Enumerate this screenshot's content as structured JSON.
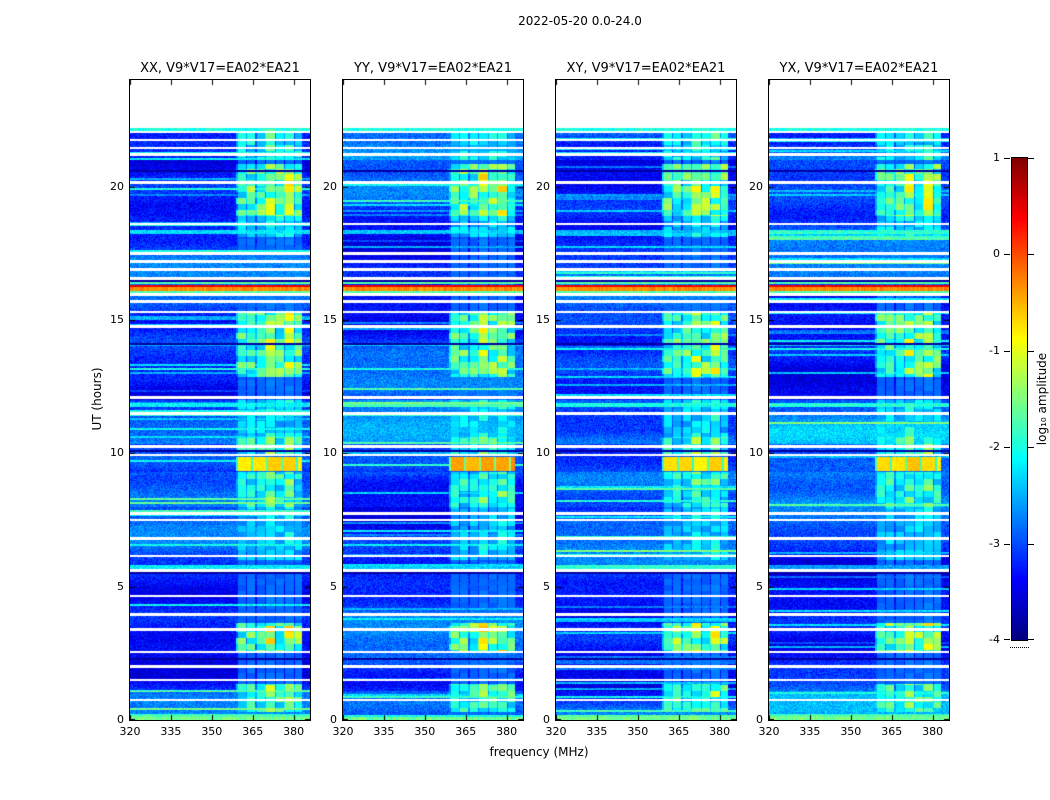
{
  "figure": {
    "suptitle": "2022-05-20 0.0-24.0"
  },
  "chart_data": {
    "type": "heatmap",
    "suptitle": "2022-05-20 0.0-24.0",
    "xlabel": "frequency (MHz)",
    "ylabel": "UT (hours)",
    "x_axis": {
      "unit": "MHz",
      "range": [
        320,
        386
      ],
      "ticks": [
        320,
        335,
        350,
        365,
        380
      ]
    },
    "y_axis": {
      "unit": "hours",
      "range": [
        0,
        24
      ],
      "ticks": [
        0,
        5,
        10,
        15,
        20
      ]
    },
    "colorbar": {
      "label": "log₁₀ amplitude",
      "range_log10": [
        -4,
        1
      ],
      "ticks": [
        1,
        0,
        -1,
        -2,
        -3,
        -4
      ],
      "colormap": "jet"
    },
    "panels": [
      {
        "pol": "XX",
        "title": "XX, V9*V17=EA02*EA21",
        "seed": 101,
        "event_peak": -0.7
      },
      {
        "pol": "YY",
        "title": "YY, V9*V17=EA02*EA21",
        "seed": 202,
        "event_peak": -0.4
      },
      {
        "pol": "XY",
        "title": "XY, V9*V17=EA02*EA21",
        "seed": 303,
        "event_peak": -0.75
      },
      {
        "pol": "YX",
        "title": "YX, V9*V17=EA02*EA21",
        "seed": 404,
        "event_peak": -0.7
      }
    ],
    "features": {
      "background_log10": -3.15,
      "data_coverage_hours": [
        0,
        22.2
      ],
      "enhanced_band_mhz": [
        359,
        383
      ],
      "band_windows": [
        {
          "hours": [
            0.3,
            1.35
          ],
          "amp": 1.3
        },
        {
          "hours": [
            2.55,
            3.65
          ],
          "amp": 1.7
        },
        {
          "hours": [
            6.0,
            8.0
          ],
          "amp": 0.6
        },
        {
          "hours": [
            8.0,
            9.3
          ],
          "amp": 1.1
        },
        {
          "hours": [
            9.9,
            10.6
          ],
          "amp": 1.2
        },
        {
          "hours": [
            10.6,
            12.0
          ],
          "amp": 0.7
        },
        {
          "hours": [
            12.85,
            15.25
          ],
          "amp": 1.5
        },
        {
          "hours": [
            18.1,
            18.9
          ],
          "amp": 0.8
        },
        {
          "hours": [
            18.9,
            20.85
          ],
          "amp": 1.6
        },
        {
          "hours": [
            21.0,
            22.15
          ],
          "amp": 0.9
        }
      ],
      "bright_event_hours": [
        9.35,
        9.88
      ],
      "rfi_line_hours": [
        16.1,
        16.34
      ],
      "white_gap_hours": [
        22.05,
        21.75,
        21.45,
        21.2,
        20.15,
        18.6,
        17.5,
        17.2,
        16.9,
        16.55,
        15.95,
        15.7,
        15.3,
        14.75,
        12.1,
        11.5,
        10.25,
        9.93,
        7.75,
        7.5,
        6.8,
        6.15,
        5.6,
        4.65,
        3.95,
        3.4,
        2.55,
        2.0,
        1.5,
        0.75
      ],
      "dark_row_hours": [
        20.6,
        16.45,
        14.1,
        10.1,
        5.5,
        2.3
      ],
      "cyan_streak_hours": [
        18.3,
        11.8,
        5.75,
        0.1
      ],
      "light_regions": [
        {
          "hours": [
            10.35,
            12.0
          ],
          "boost": 0.45
        },
        {
          "hours": [
            21.0,
            22.2
          ],
          "boost": 0.3
        },
        {
          "hours": [
            8.0,
            9.3
          ],
          "boost": 0.2
        },
        {
          "hours": [
            0.0,
            1.1
          ],
          "boost": 0.25
        }
      ]
    }
  }
}
